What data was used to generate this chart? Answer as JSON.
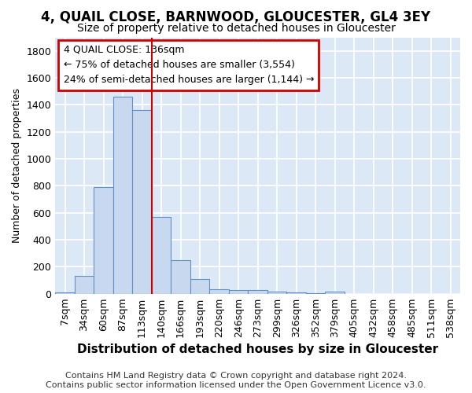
{
  "title1": "4, QUAIL CLOSE, BARNWOOD, GLOUCESTER, GL4 3EY",
  "title2": "Size of property relative to detached houses in Gloucester",
  "xlabel": "Distribution of detached houses by size in Gloucester",
  "ylabel": "Number of detached properties",
  "categories": [
    "7sqm",
    "34sqm",
    "60sqm",
    "87sqm",
    "113sqm",
    "140sqm",
    "166sqm",
    "193sqm",
    "220sqm",
    "246sqm",
    "273sqm",
    "299sqm",
    "326sqm",
    "352sqm",
    "379sqm",
    "405sqm",
    "432sqm",
    "458sqm",
    "485sqm",
    "511sqm",
    "538sqm"
  ],
  "values": [
    10,
    130,
    790,
    1460,
    1360,
    570,
    250,
    110,
    35,
    30,
    28,
    15,
    10,
    2,
    15,
    0,
    0,
    0,
    0,
    0,
    0
  ],
  "bar_color": "#c8d8ee",
  "bar_edge_color": "#6090c8",
  "vline_color": "#cc0000",
  "annotation_box_text": "4 QUAIL CLOSE: 136sqm\n← 75% of detached houses are smaller (3,554)\n24% of semi-detached houses are larger (1,144) →",
  "annotation_box_color": "#cc0000",
  "annotation_box_bg": "#ffffff",
  "ylim": [
    0,
    1900
  ],
  "yticks": [
    0,
    200,
    400,
    600,
    800,
    1000,
    1200,
    1400,
    1600,
    1800
  ],
  "footer1": "Contains HM Land Registry data © Crown copyright and database right 2024.",
  "footer2": "Contains public sector information licensed under the Open Government Licence v3.0.",
  "fig_bg_color": "#ffffff",
  "plot_bg_color": "#dce8f5",
  "grid_color": "#ffffff",
  "title1_fontsize": 12,
  "title2_fontsize": 10,
  "xlabel_fontsize": 11,
  "ylabel_fontsize": 9,
  "tick_fontsize": 9,
  "footer_fontsize": 8,
  "vline_index": 5
}
